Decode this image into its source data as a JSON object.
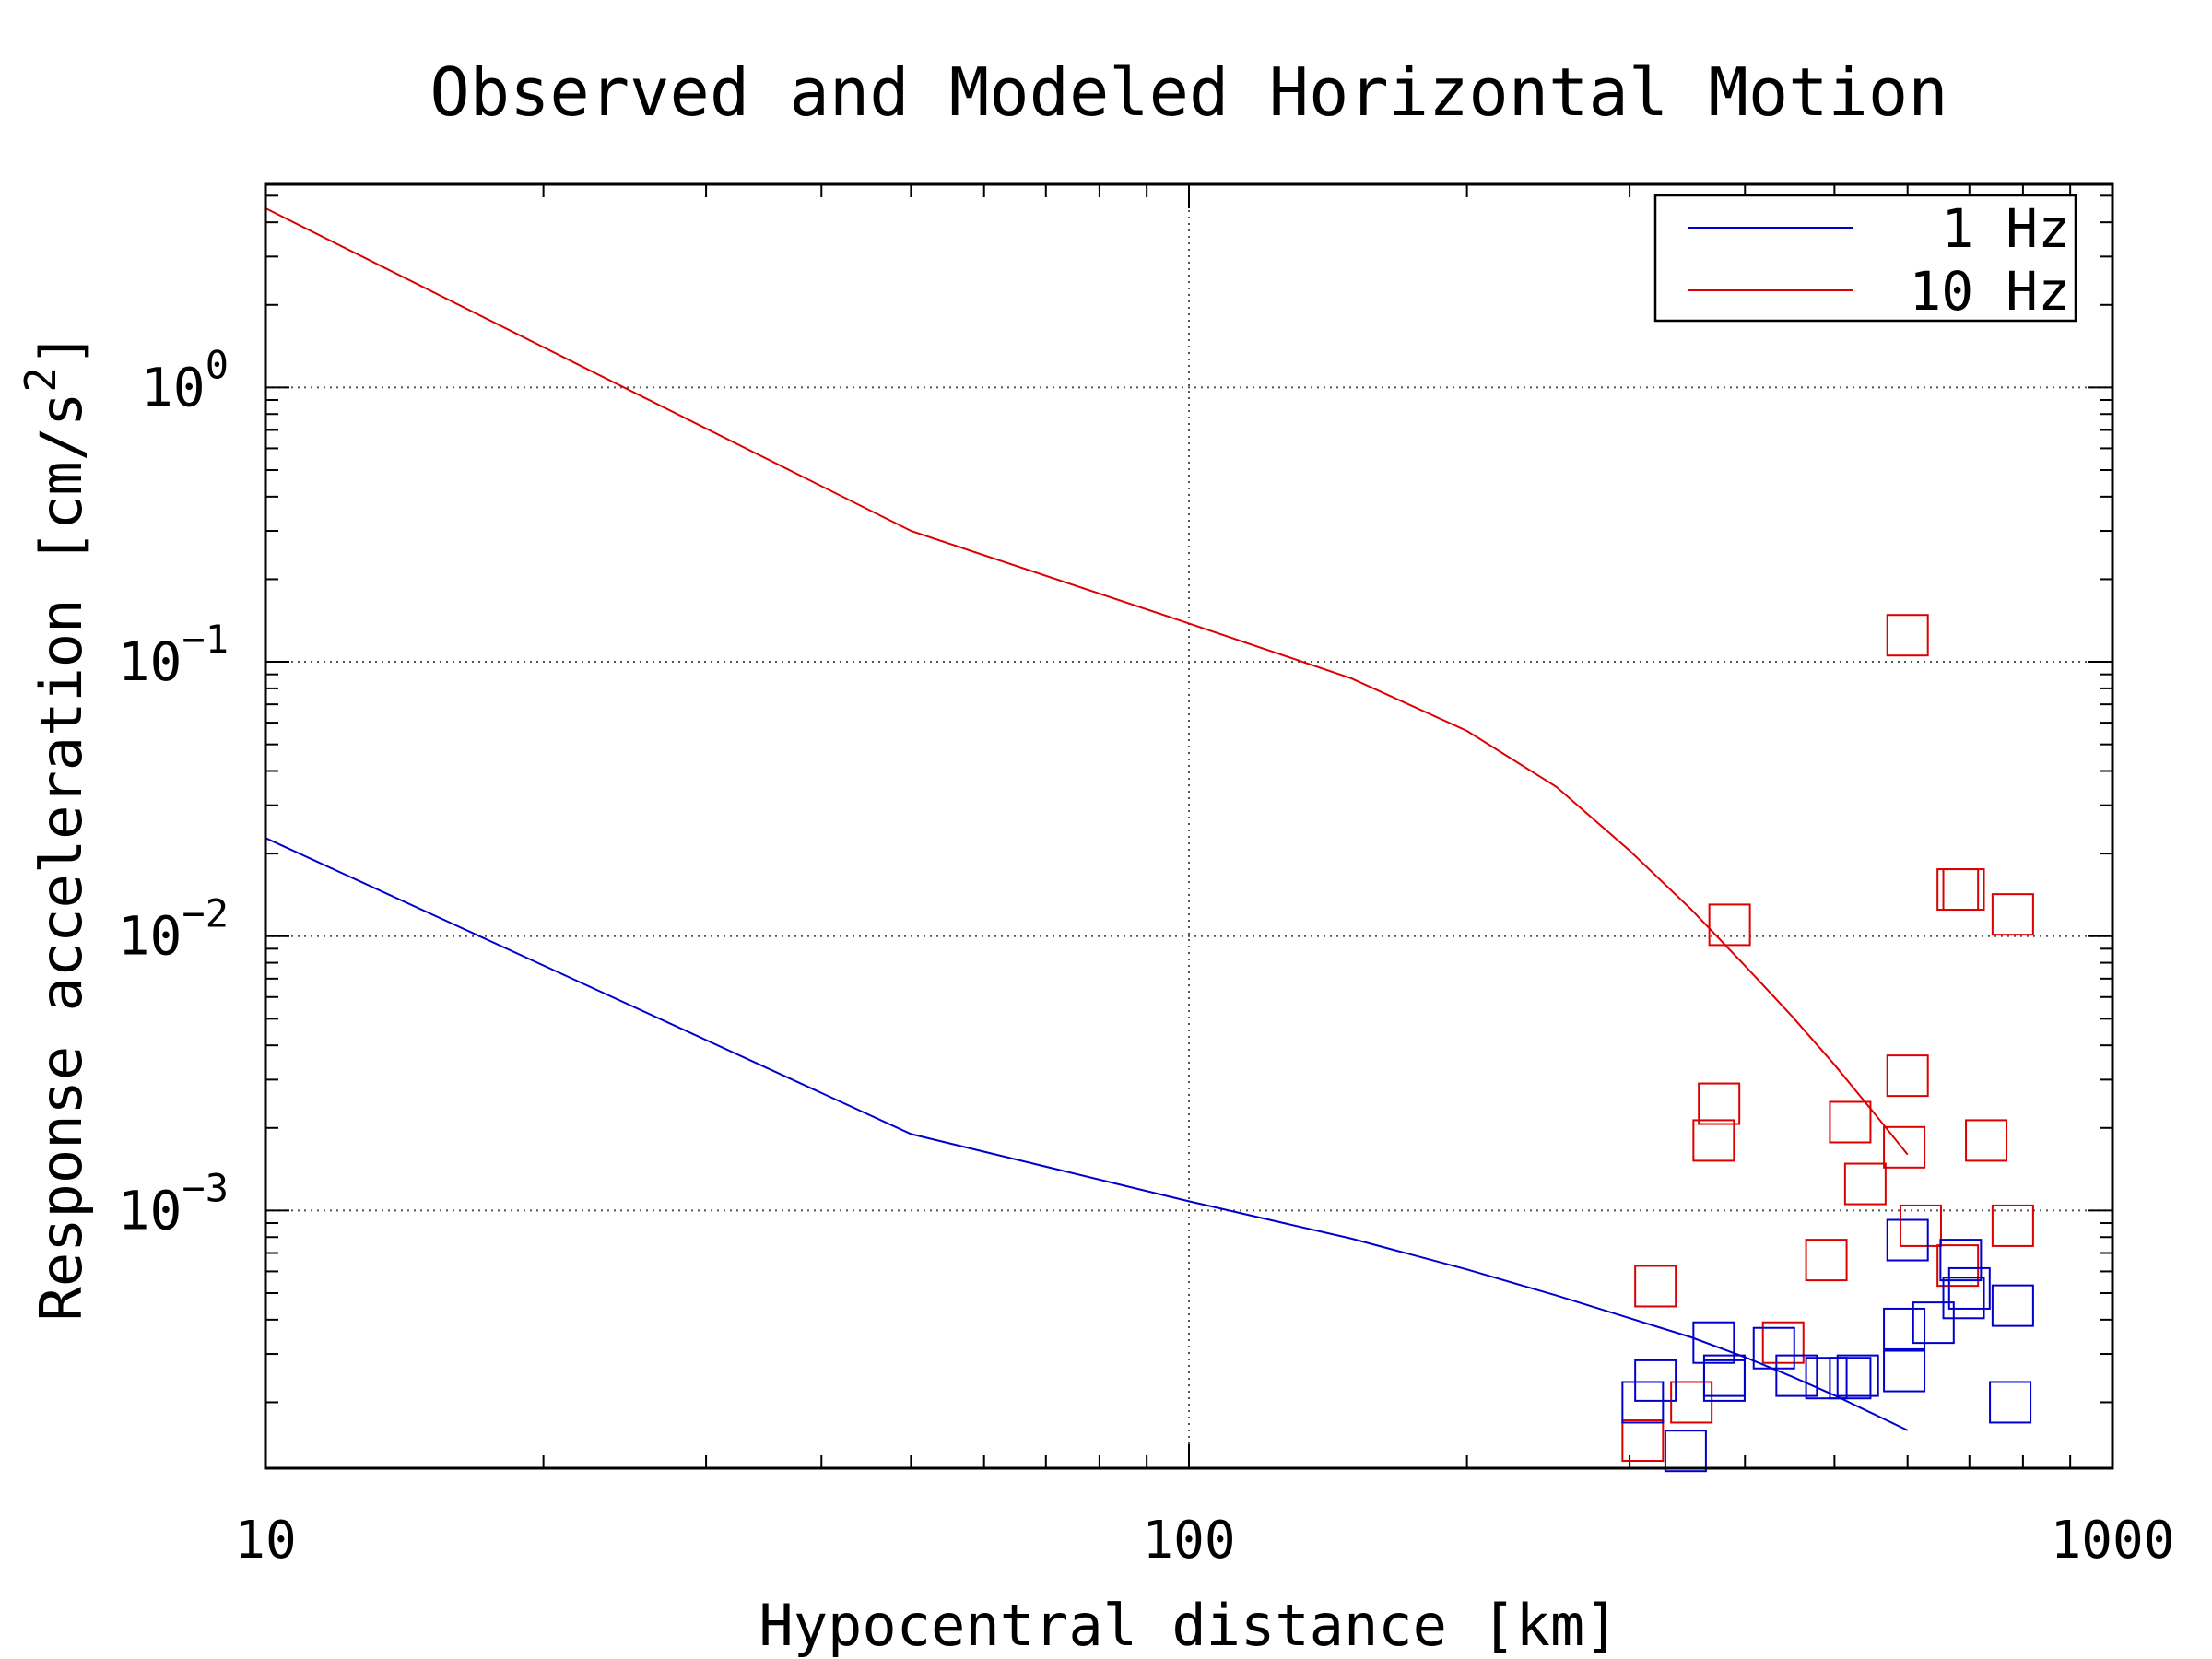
{
  "chart_data": {
    "type": "scatter",
    "title": "Observed and Modeled Horizontal Motion",
    "xlabel": "Hypocentral distance [km]",
    "ylabel_main": "Response acceleration [cm/s",
    "ylabel_sup": "2",
    "ylabel_close": "]",
    "x_scale": "log",
    "y_scale": "log",
    "xlim": [
      10,
      1000
    ],
    "ylim": [
      0.000115,
      5.5
    ],
    "x_ticks": [
      {
        "value": 10,
        "label": "10"
      },
      {
        "value": 100,
        "label": "100"
      },
      {
        "value": 1000,
        "label": "1000"
      }
    ],
    "y_ticks": [
      {
        "value": 1,
        "base": "10",
        "exp": "0"
      },
      {
        "value": 0.1,
        "base": "10",
        "exp": "−1"
      },
      {
        "value": 0.01,
        "base": "10",
        "exp": "−2"
      },
      {
        "value": 0.001,
        "base": "10",
        "exp": "−3"
      }
    ],
    "grid": true,
    "legend": {
      "position": "top-right",
      "entries": [
        {
          "label": "1 Hz",
          "color": "#0000cc"
        },
        {
          "label": "10 Hz",
          "color": "#dd0000"
        }
      ]
    },
    "lines": [
      {
        "name": "1 Hz",
        "color": "#0000cc",
        "x": [
          10,
          50,
          100,
          150,
          200,
          250,
          300,
          350,
          400,
          450,
          500,
          550,
          600
        ],
        "y": [
          0.0228,
          0.0019,
          0.00108,
          0.00079,
          0.00061,
          0.00049,
          0.000405,
          0.000345,
          0.000292,
          0.000248,
          0.000212,
          0.000182,
          0.000158
        ]
      },
      {
        "name": "10 Hz",
        "color": "#dd0000",
        "x": [
          10,
          50,
          100,
          150,
          200,
          250,
          300,
          350,
          400,
          450,
          500,
          550,
          600
        ],
        "y": [
          4.5,
          0.3,
          0.138,
          0.087,
          0.056,
          0.035,
          0.0205,
          0.0125,
          0.0078,
          0.0051,
          0.0034,
          0.0023,
          0.0016
        ]
      }
    ],
    "scatter": [
      {
        "name": "10 Hz",
        "color": "#dd0000",
        "points": [
          [
            600,
            0.125
          ],
          [
            680,
            0.0148
          ],
          [
            690,
            0.0148
          ],
          [
            780,
            0.012
          ],
          [
            385,
            0.011
          ],
          [
            600,
            0.0031
          ],
          [
            375,
            0.00245
          ],
          [
            520,
            0.0021
          ],
          [
            370,
            0.0018
          ],
          [
            595,
            0.0017
          ],
          [
            730,
            0.0018
          ],
          [
            540,
            0.00125
          ],
          [
            620,
            0.00088
          ],
          [
            780,
            0.00088
          ],
          [
            490,
            0.00066
          ],
          [
            320,
            0.00053
          ],
          [
            440,
            0.00033
          ],
          [
            350,
            0.0002
          ],
          [
            310,
            0.000145
          ],
          [
            680,
            0.00063
          ]
        ]
      },
      {
        "name": "1 Hz",
        "color": "#0000cc",
        "points": [
          [
            600,
            0.00078
          ],
          [
            685,
            0.00066
          ],
          [
            700,
            0.00052
          ],
          [
            690,
            0.00048
          ],
          [
            780,
            0.00045
          ],
          [
            640,
            0.00039
          ],
          [
            595,
            0.00037
          ],
          [
            370,
            0.00033
          ],
          [
            380,
            0.00025
          ],
          [
            430,
            0.000315
          ],
          [
            455,
            0.00025
          ],
          [
            490,
            0.000245
          ],
          [
            520,
            0.000245
          ],
          [
            530,
            0.00025
          ],
          [
            595,
            0.00026
          ],
          [
            320,
            0.00024
          ],
          [
            310,
            0.0002
          ],
          [
            775,
            0.0002
          ],
          [
            345,
            0.000133
          ],
          [
            380,
            0.00024
          ]
        ]
      }
    ]
  }
}
